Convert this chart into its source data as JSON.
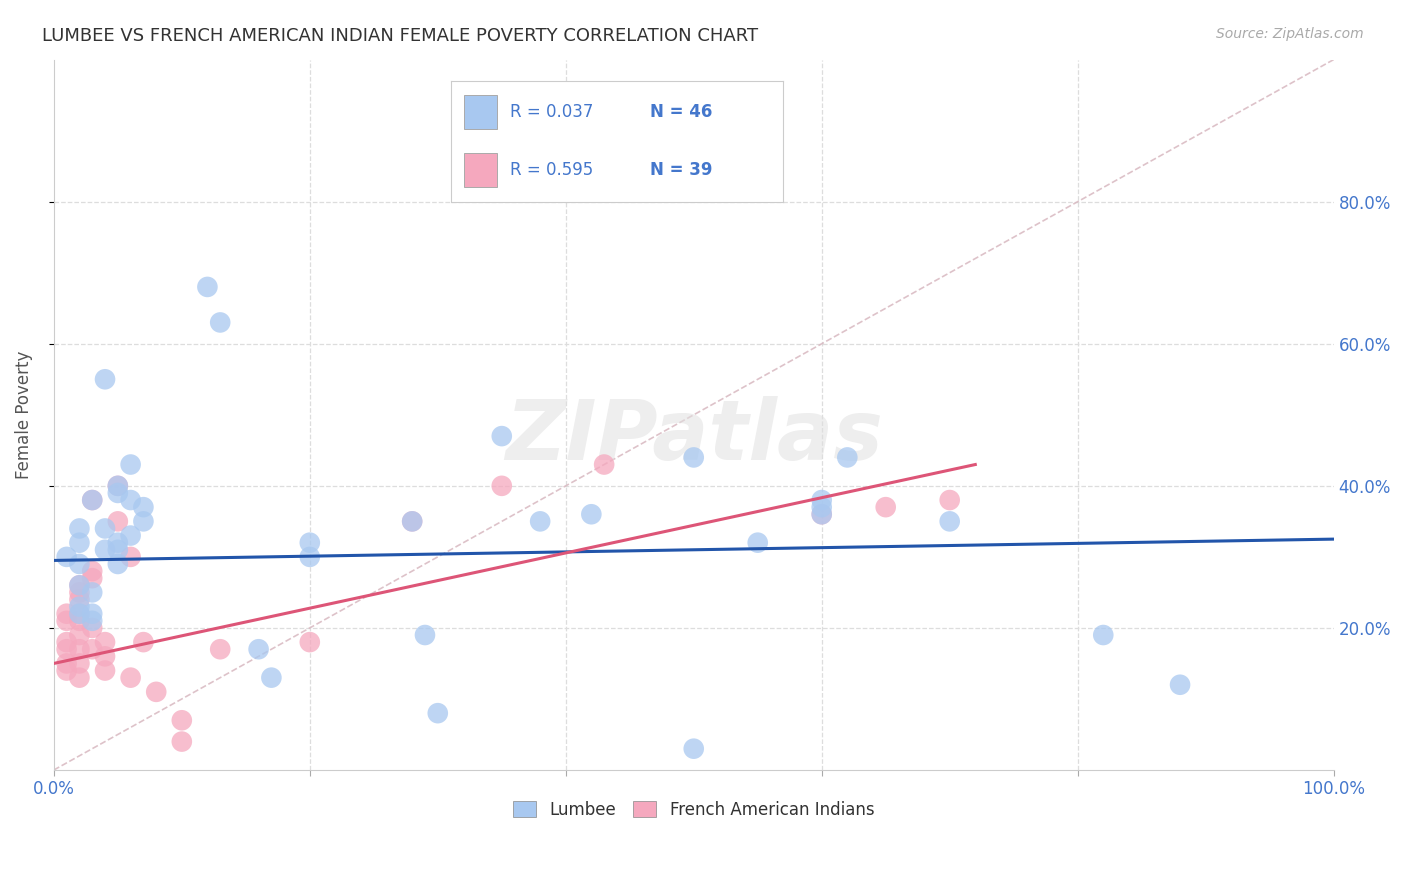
{
  "title": "LUMBEE VS FRENCH AMERICAN INDIAN FEMALE POVERTY CORRELATION CHART",
  "source": "Source: ZipAtlas.com",
  "ylabel": "Female Poverty",
  "xlim": [
    0,
    1.0
  ],
  "ylim": [
    0,
    1.0
  ],
  "background_color": "#ffffff",
  "lumbee_R": 0.037,
  "lumbee_N": 46,
  "french_R": 0.595,
  "french_N": 39,
  "lumbee_color": "#a8c8f0",
  "french_color": "#f5a8be",
  "lumbee_line_color": "#2255aa",
  "french_line_color": "#dd5577",
  "diagonal_color": "#d8b8c0",
  "grid_color": "#dddddd",
  "tick_color": "#4477cc",
  "lumbee_scatter": [
    [
      0.01,
      0.3
    ],
    [
      0.02,
      0.22
    ],
    [
      0.02,
      0.23
    ],
    [
      0.02,
      0.26
    ],
    [
      0.02,
      0.32
    ],
    [
      0.02,
      0.29
    ],
    [
      0.02,
      0.34
    ],
    [
      0.03,
      0.38
    ],
    [
      0.03,
      0.22
    ],
    [
      0.03,
      0.21
    ],
    [
      0.03,
      0.25
    ],
    [
      0.04,
      0.55
    ],
    [
      0.04,
      0.31
    ],
    [
      0.04,
      0.34
    ],
    [
      0.05,
      0.4
    ],
    [
      0.05,
      0.39
    ],
    [
      0.05,
      0.31
    ],
    [
      0.05,
      0.32
    ],
    [
      0.05,
      0.29
    ],
    [
      0.06,
      0.43
    ],
    [
      0.06,
      0.38
    ],
    [
      0.06,
      0.33
    ],
    [
      0.07,
      0.37
    ],
    [
      0.07,
      0.35
    ],
    [
      0.12,
      0.68
    ],
    [
      0.13,
      0.63
    ],
    [
      0.16,
      0.17
    ],
    [
      0.17,
      0.13
    ],
    [
      0.2,
      0.3
    ],
    [
      0.2,
      0.32
    ],
    [
      0.28,
      0.35
    ],
    [
      0.29,
      0.19
    ],
    [
      0.3,
      0.08
    ],
    [
      0.35,
      0.47
    ],
    [
      0.38,
      0.35
    ],
    [
      0.42,
      0.36
    ],
    [
      0.5,
      0.44
    ],
    [
      0.5,
      0.03
    ],
    [
      0.55,
      0.32
    ],
    [
      0.6,
      0.38
    ],
    [
      0.6,
      0.36
    ],
    [
      0.6,
      0.37
    ],
    [
      0.62,
      0.44
    ],
    [
      0.7,
      0.35
    ],
    [
      0.82,
      0.19
    ],
    [
      0.88,
      0.12
    ]
  ],
  "french_scatter": [
    [
      0.01,
      0.18
    ],
    [
      0.01,
      0.17
    ],
    [
      0.01,
      0.15
    ],
    [
      0.01,
      0.14
    ],
    [
      0.01,
      0.22
    ],
    [
      0.01,
      0.21
    ],
    [
      0.02,
      0.19
    ],
    [
      0.02,
      0.17
    ],
    [
      0.02,
      0.15
    ],
    [
      0.02,
      0.13
    ],
    [
      0.02,
      0.21
    ],
    [
      0.02,
      0.22
    ],
    [
      0.02,
      0.25
    ],
    [
      0.02,
      0.26
    ],
    [
      0.02,
      0.24
    ],
    [
      0.03,
      0.28
    ],
    [
      0.03,
      0.27
    ],
    [
      0.03,
      0.38
    ],
    [
      0.03,
      0.2
    ],
    [
      0.03,
      0.17
    ],
    [
      0.04,
      0.14
    ],
    [
      0.04,
      0.16
    ],
    [
      0.04,
      0.18
    ],
    [
      0.05,
      0.35
    ],
    [
      0.05,
      0.4
    ],
    [
      0.06,
      0.3
    ],
    [
      0.06,
      0.13
    ],
    [
      0.07,
      0.18
    ],
    [
      0.08,
      0.11
    ],
    [
      0.1,
      0.07
    ],
    [
      0.1,
      0.04
    ],
    [
      0.13,
      0.17
    ],
    [
      0.2,
      0.18
    ],
    [
      0.28,
      0.35
    ],
    [
      0.35,
      0.4
    ],
    [
      0.43,
      0.43
    ],
    [
      0.6,
      0.36
    ],
    [
      0.65,
      0.37
    ],
    [
      0.7,
      0.38
    ]
  ],
  "lumbee_line": [
    [
      0.0,
      0.295
    ],
    [
      1.0,
      0.325
    ]
  ],
  "french_line": [
    [
      0.0,
      0.15
    ],
    [
      0.72,
      0.43
    ]
  ]
}
